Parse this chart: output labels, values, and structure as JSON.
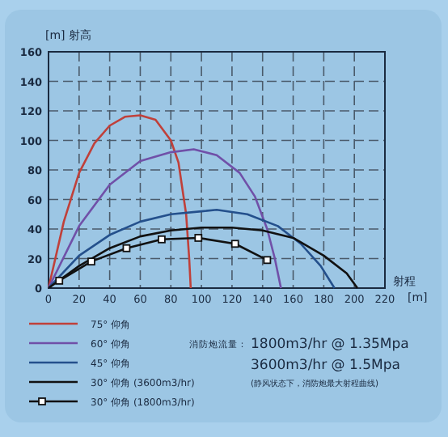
{
  "chart_data": {
    "type": "line",
    "ylabel": "[m] 射高",
    "xlabel": "射程 [m]",
    "xlim": [
      0,
      220
    ],
    "xticks": [
      0,
      20,
      40,
      60,
      80,
      100,
      120,
      140,
      160,
      180,
      200,
      220
    ],
    "ylim": [
      0,
      160
    ],
    "yticks": [
      0,
      20,
      40,
      60,
      80,
      100,
      120,
      140,
      160
    ],
    "grid": true,
    "legend": "bottom left",
    "marker": "none",
    "line_style": "solid",
    "series": [
      {
        "name": "75° 仰角",
        "color": "#c0403a",
        "x": [
          0,
          10,
          20,
          30,
          40,
          50,
          60,
          70,
          80,
          85,
          90,
          92,
          93
        ],
        "values": [
          0,
          45,
          78,
          98,
          110,
          116,
          117,
          114,
          100,
          85,
          50,
          20,
          0
        ]
      },
      {
        "name": "60° 仰角",
        "color": "#7050a8",
        "x": [
          0,
          20,
          40,
          60,
          80,
          95,
          110,
          125,
          135,
          143,
          148,
          152
        ],
        "values": [
          0,
          42,
          70,
          86,
          92,
          94,
          90,
          78,
          62,
          40,
          20,
          0
        ]
      },
      {
        "name": "45° 仰角",
        "color": "#24508c",
        "x": [
          0,
          20,
          40,
          60,
          80,
          100,
          110,
          130,
          150,
          165,
          178,
          187
        ],
        "values": [
          0,
          22,
          36,
          45,
          50,
          52,
          53,
          50,
          42,
          30,
          15,
          0
        ]
      },
      {
        "name": "30° 仰角 (3600m3/hr)",
        "color": "#111111",
        "x": [
          0,
          20,
          40,
          60,
          80,
          100,
          120,
          140,
          160,
          180,
          195,
          202
        ],
        "values": [
          0,
          15,
          27,
          35,
          39,
          41,
          41,
          39,
          34,
          22,
          10,
          0
        ]
      },
      {
        "name": "30° 仰角 (1800m3/hr)",
        "color": "#111111",
        "marker": "square",
        "x": [
          7,
          28,
          51,
          74,
          98,
          122,
          143
        ],
        "values": [
          5,
          18,
          27,
          33,
          34,
          30,
          19
        ]
      }
    ],
    "annotations": [
      "消防炮流量：",
      "1800m3/hr @ 1.35Mpa",
      "3600m3/hr @ 1.5Mpa",
      "(静风状态下，消防炮最大射程曲线)"
    ]
  }
}
